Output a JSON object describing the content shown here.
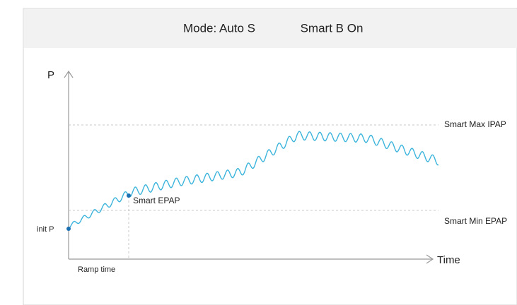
{
  "header": {
    "mode": "Mode: Auto S",
    "status": "Smart B On"
  },
  "diagram": {
    "y_axis_label": "P",
    "x_axis_label": "Time",
    "max_line_label": "Smart Max IPAP",
    "min_line_label": "Smart Min EPAP",
    "start_point_label": "init P",
    "ramp_point_label": "Smart EPAP",
    "ramp_label": "Ramp time"
  }
}
